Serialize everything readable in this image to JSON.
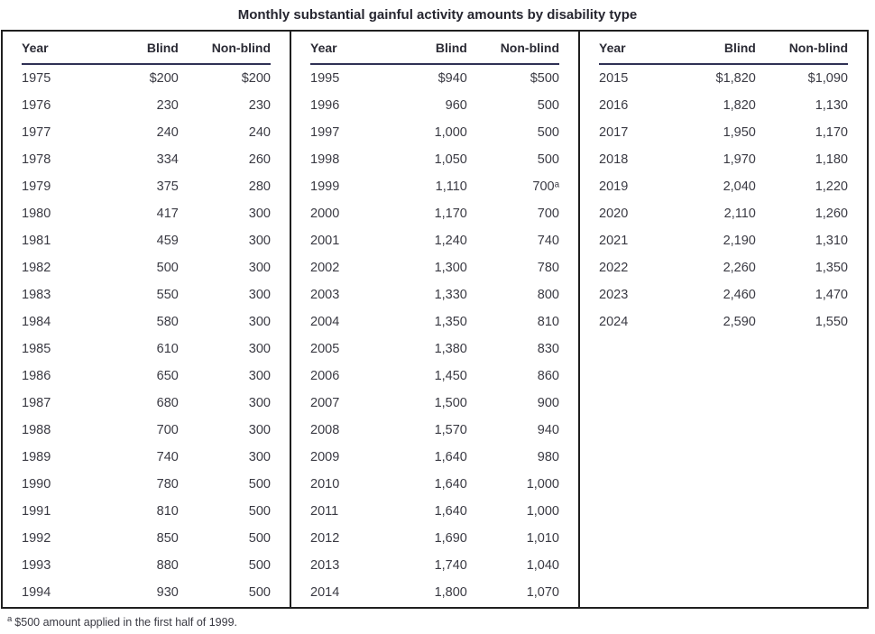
{
  "title": "Monthly substantial gainful activity amounts by disability type",
  "table": {
    "columns": [
      "Year",
      "Blind",
      "Non-blind"
    ],
    "groups": [
      {
        "rows": [
          [
            "1975",
            "$200",
            "$200"
          ],
          [
            "1976",
            "230",
            "230"
          ],
          [
            "1977",
            "240",
            "240"
          ],
          [
            "1978",
            "334",
            "260"
          ],
          [
            "1979",
            "375",
            "280"
          ],
          [
            "1980",
            "417",
            "300"
          ],
          [
            "1981",
            "459",
            "300"
          ],
          [
            "1982",
            "500",
            "300"
          ],
          [
            "1983",
            "550",
            "300"
          ],
          [
            "1984",
            "580",
            "300"
          ],
          [
            "1985",
            "610",
            "300"
          ],
          [
            "1986",
            "650",
            "300"
          ],
          [
            "1987",
            "680",
            "300"
          ],
          [
            "1988",
            "700",
            "300"
          ],
          [
            "1989",
            "740",
            "300"
          ],
          [
            "1990",
            "780",
            "500"
          ],
          [
            "1991",
            "810",
            "500"
          ],
          [
            "1992",
            "850",
            "500"
          ],
          [
            "1993",
            "880",
            "500"
          ],
          [
            "1994",
            "930",
            "500"
          ]
        ]
      },
      {
        "rows": [
          [
            "1995",
            "$940",
            "$500"
          ],
          [
            "1996",
            "960",
            "500"
          ],
          [
            "1997",
            "1,000",
            "500"
          ],
          [
            "1998",
            "1,050",
            "500"
          ],
          [
            "1999",
            "1,110",
            "700ᵃ"
          ],
          [
            "2000",
            "1,170",
            "700"
          ],
          [
            "2001",
            "1,240",
            "740"
          ],
          [
            "2002",
            "1,300",
            "780"
          ],
          [
            "2003",
            "1,330",
            "800"
          ],
          [
            "2004",
            "1,350",
            "810"
          ],
          [
            "2005",
            "1,380",
            "830"
          ],
          [
            "2006",
            "1,450",
            "860"
          ],
          [
            "2007",
            "1,500",
            "900"
          ],
          [
            "2008",
            "1,570",
            "940"
          ],
          [
            "2009",
            "1,640",
            "980"
          ],
          [
            "2010",
            "1,640",
            "1,000"
          ],
          [
            "2011",
            "1,640",
            "1,000"
          ],
          [
            "2012",
            "1,690",
            "1,010"
          ],
          [
            "2013",
            "1,740",
            "1,040"
          ],
          [
            "2014",
            "1,800",
            "1,070"
          ]
        ]
      },
      {
        "rows": [
          [
            "2015",
            "$1,820",
            "$1,090"
          ],
          [
            "2016",
            "1,820",
            "1,130"
          ],
          [
            "2017",
            "1,950",
            "1,170"
          ],
          [
            "2018",
            "1,970",
            "1,180"
          ],
          [
            "2019",
            "2,040",
            "1,220"
          ],
          [
            "2020",
            "2,110",
            "1,260"
          ],
          [
            "2021",
            "2,190",
            "1,310"
          ],
          [
            "2022",
            "2,260",
            "1,350"
          ],
          [
            "2023",
            "2,460",
            "1,470"
          ],
          [
            "2024",
            "2,590",
            "1,550"
          ]
        ]
      }
    ]
  },
  "footnote": {
    "marker": "a",
    "text": "$500 amount applied in the first half of 1999."
  },
  "colors": {
    "border": "#1f1f1f",
    "header_underline": "#2f3155",
    "header_text": "#2b2b35",
    "text": "#3a3a43",
    "title_text": "#262630"
  }
}
